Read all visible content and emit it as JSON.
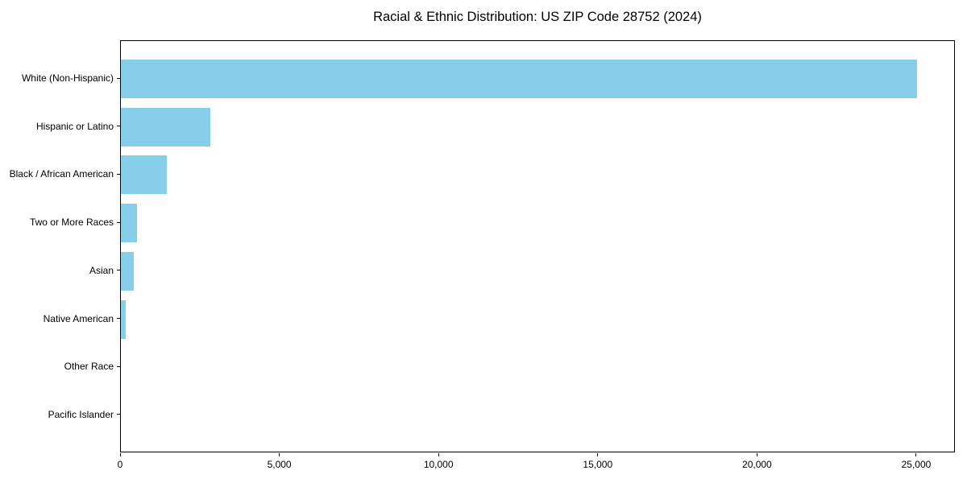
{
  "chart_data": {
    "type": "bar",
    "orientation": "horizontal",
    "title": "Racial & Ethnic Distribution: US ZIP Code 28752 (2024)",
    "categories": [
      "White (Non-Hispanic)",
      "Hispanic or Latino",
      "Black / African American",
      "Two or More Races",
      "Asian",
      "Native American",
      "Other Race",
      "Pacific Islander"
    ],
    "values": [
      25000,
      2800,
      1450,
      500,
      400,
      150,
      0,
      0
    ],
    "xlabel": "",
    "ylabel": "",
    "xlim": [
      0,
      26215
    ],
    "x_ticks": [
      0,
      5000,
      10000,
      15000,
      20000,
      25000
    ],
    "x_tick_labels": [
      "0",
      "5,000",
      "10,000",
      "15,000",
      "20,000",
      "25,000"
    ],
    "bar_color": "#87CEEB",
    "axis_color": "#000000",
    "background_color": "#ffffff",
    "grid": false,
    "legend": false
  }
}
